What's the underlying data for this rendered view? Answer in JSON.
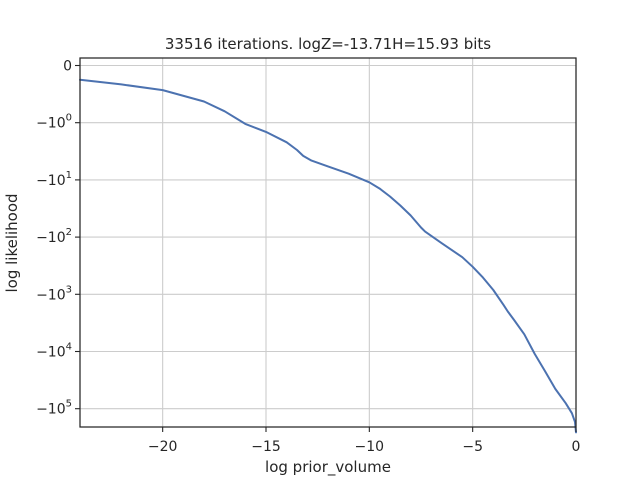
{
  "chart_data": {
    "type": "line",
    "title": "33516 iterations. logZ=-13.71H=15.93 bits",
    "xlabel": "log prior_volume",
    "ylabel": "log likelihood",
    "x_scale": "linear",
    "y_scale": "symlog",
    "xlim": [
      -24,
      0
    ],
    "x_ticks": [
      -20,
      -15,
      -10,
      -5,
      0
    ],
    "x_tick_labels": [
      "−20",
      "−15",
      "−10",
      "−5",
      "0"
    ],
    "y_ticks": [
      0,
      -1,
      -10,
      -100,
      -1000,
      -10000,
      -100000
    ],
    "y_tick_labels": [
      {
        "base": "0",
        "exp": ""
      },
      {
        "base": "−10",
        "exp": "0"
      },
      {
        "base": "−10",
        "exp": "1"
      },
      {
        "base": "−10",
        "exp": "2"
      },
      {
        "base": "−10",
        "exp": "3"
      },
      {
        "base": "−10",
        "exp": "4"
      },
      {
        "base": "−10",
        "exp": "5"
      }
    ],
    "grid": true,
    "line_color": "#4c72b0",
    "series": [
      {
        "x": [
          -24,
          -22,
          -20,
          -18,
          -17,
          -16,
          -15,
          -14,
          -13.5,
          -13.2,
          -12.8,
          -12,
          -11,
          -10,
          -9.5,
          -9,
          -8.5,
          -8,
          -7.5,
          -7.3,
          -6.5,
          -5.5,
          -5,
          -4.5,
          -4,
          -3.5,
          -3.3,
          -3,
          -2.5,
          -2,
          -1.5,
          -1,
          -0.5,
          -0.2,
          -0.05,
          0
        ],
        "y": [
          -0.25,
          -0.33,
          -0.43,
          -0.63,
          -0.8,
          -1.05,
          -1.45,
          -2.2,
          -3.0,
          -3.8,
          -4.6,
          -5.8,
          -7.8,
          -11,
          -14.2,
          -19.5,
          -28,
          -42,
          -68,
          -80,
          -128,
          -225,
          -330,
          -510,
          -840,
          -1550,
          -2000,
          -2800,
          -5000,
          -11000,
          -22000,
          -45000,
          -80000,
          -120000,
          -170000,
          -260000
        ]
      }
    ]
  }
}
